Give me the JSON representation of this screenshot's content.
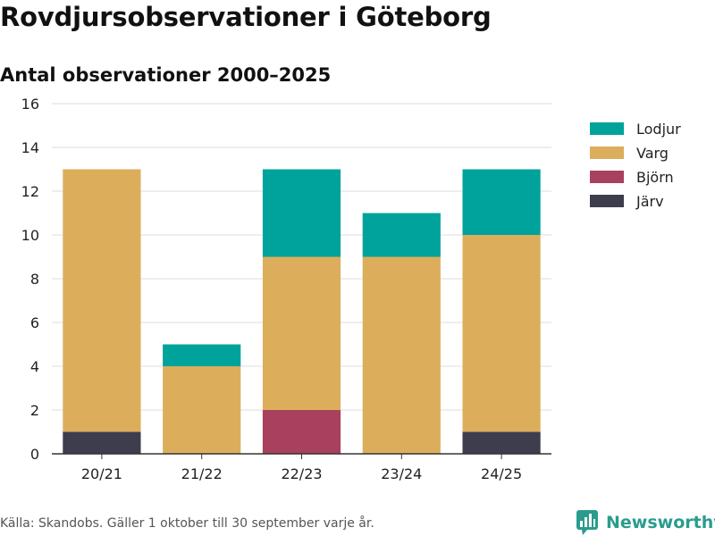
{
  "brand": {
    "name": "Newsworthy",
    "color": "#2a9c8e",
    "icon": "bar-chart-icon"
  },
  "source": "Källa: Skandobs. Gäller 1 oktober till 30 september varje år.",
  "chart_data": {
    "type": "bar",
    "stacked": true,
    "title": "Rovdjursobservationer i Göteborg",
    "subtitle": "Antal observationer 2000–2025",
    "xlabel": "",
    "ylabel": "",
    "ylim": [
      0,
      16
    ],
    "yticks": [
      0,
      2,
      4,
      6,
      8,
      10,
      12,
      14,
      16
    ],
    "grid": true,
    "legend_position": "top-right",
    "categories": [
      "20/21",
      "21/22",
      "22/23",
      "23/24",
      "24/25"
    ],
    "series": [
      {
        "name": "Järv",
        "color": "#3d3d4e",
        "values": [
          1,
          0,
          0,
          0,
          1
        ]
      },
      {
        "name": "Björn",
        "color": "#a8405e",
        "values": [
          0,
          0,
          2,
          0,
          0
        ]
      },
      {
        "name": "Varg",
        "color": "#dcae5c",
        "values": [
          12,
          4,
          7,
          9,
          9
        ]
      },
      {
        "name": "Lodjur",
        "color": "#00a39b",
        "values": [
          0,
          1,
          4,
          2,
          3
        ]
      }
    ],
    "legend_order": [
      "Lodjur",
      "Varg",
      "Björn",
      "Järv"
    ]
  }
}
